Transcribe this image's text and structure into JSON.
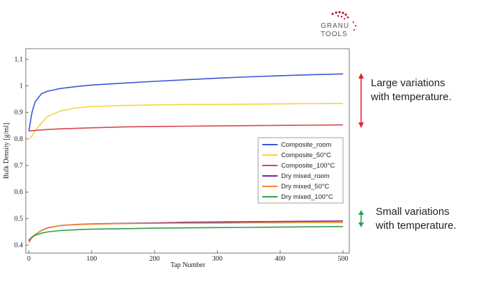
{
  "logo": {
    "line1": "GRANU",
    "line2": "TOOLS",
    "color": "#c8102e"
  },
  "annotations": {
    "large": {
      "line1": "Large variations",
      "line2": "with temperature.",
      "arrow_color": "#e3262b"
    },
    "small": {
      "line1": "Small variations",
      "line2": "with temperature.",
      "arrow_color": "#23a651"
    }
  },
  "chart_data": {
    "type": "line",
    "xlabel": "Tap Number",
    "ylabel": "Bulk Density [g/ml]",
    "xlim": [
      -5,
      510
    ],
    "ylim": [
      0.37,
      1.14
    ],
    "xticks": [
      0,
      100,
      200,
      300,
      400,
      500
    ],
    "yticks": [
      0.4,
      0.5,
      0.6,
      0.7,
      0.8,
      0.9,
      1,
      1.1
    ],
    "ytick_labels": [
      "0.4",
      "0.5",
      "0.6",
      "0.7",
      "0.8",
      "0.9",
      "1",
      "1.1"
    ],
    "grid": false,
    "legend": "center-right",
    "series": [
      {
        "name": "Composite_room",
        "color": "#3a56d4",
        "x": [
          0,
          5,
          10,
          20,
          30,
          50,
          75,
          100,
          150,
          200,
          250,
          300,
          350,
          400,
          450,
          500
        ],
        "y": [
          0.83,
          0.9,
          0.94,
          0.97,
          0.98,
          0.99,
          0.997,
          1.003,
          1.01,
          1.017,
          1.023,
          1.029,
          1.034,
          1.038,
          1.042,
          1.045
        ]
      },
      {
        "name": "Composite_50°C",
        "color": "#f5d33a",
        "x": [
          0,
          5,
          10,
          20,
          30,
          50,
          75,
          100,
          150,
          200,
          250,
          300,
          350,
          400,
          450,
          500
        ],
        "y": [
          0.8,
          0.81,
          0.83,
          0.86,
          0.885,
          0.905,
          0.917,
          0.922,
          0.926,
          0.928,
          0.93,
          0.93,
          0.931,
          0.932,
          0.933,
          0.934
        ]
      },
      {
        "name": "Composite_100°C",
        "color": "#d9444a",
        "x": [
          0,
          10,
          20,
          50,
          100,
          150,
          200,
          250,
          300,
          350,
          400,
          450,
          500
        ],
        "y": [
          0.83,
          0.832,
          0.834,
          0.838,
          0.842,
          0.845,
          0.847,
          0.848,
          0.849,
          0.85,
          0.851,
          0.852,
          0.853
        ]
      },
      {
        "name": "Dry mixed_room",
        "color": "#6a2a9c",
        "x": [
          0,
          5,
          10,
          20,
          30,
          50,
          75,
          100,
          150,
          200,
          250,
          300,
          350,
          400,
          450,
          500
        ],
        "y": [
          0.415,
          0.43,
          0.44,
          0.455,
          0.465,
          0.474,
          0.478,
          0.48,
          0.482,
          0.484,
          0.486,
          0.487,
          0.488,
          0.489,
          0.49,
          0.491
        ]
      },
      {
        "name": "Dry mixed_50°C",
        "color": "#f28a2e",
        "x": [
          0,
          5,
          10,
          20,
          30,
          50,
          75,
          100,
          150,
          200,
          250,
          300,
          350,
          400,
          450,
          500
        ],
        "y": [
          0.41,
          0.428,
          0.44,
          0.456,
          0.466,
          0.474,
          0.477,
          0.479,
          0.481,
          0.482,
          0.483,
          0.483,
          0.484,
          0.484,
          0.485,
          0.485
        ]
      },
      {
        "name": "Dry mixed_100°C",
        "color": "#2f9e44",
        "x": [
          0,
          5,
          10,
          20,
          30,
          50,
          75,
          100,
          150,
          200,
          250,
          300,
          350,
          400,
          450,
          500
        ],
        "y": [
          0.42,
          0.43,
          0.437,
          0.445,
          0.45,
          0.455,
          0.458,
          0.46,
          0.462,
          0.464,
          0.465,
          0.466,
          0.467,
          0.468,
          0.469,
          0.47
        ]
      }
    ]
  }
}
